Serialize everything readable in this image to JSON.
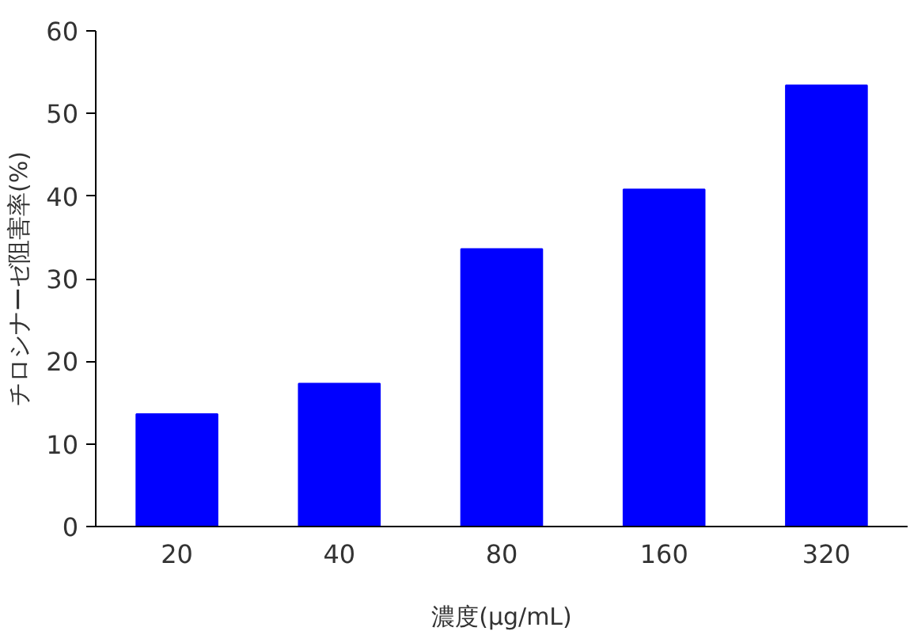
{
  "chart_data": {
    "type": "bar",
    "xlabel": "濃度(μg/mL)",
    "ylabel": "チロシナーゼ阻害率(%)",
    "categories": [
      "20",
      "40",
      "80",
      "160",
      "320"
    ],
    "values": [
      13.6,
      17.3,
      33.6,
      40.8,
      53.4
    ],
    "color": "#0000ff",
    "ylim": [
      0,
      60
    ],
    "yticks": [
      0,
      10,
      20,
      30,
      40,
      50,
      60
    ],
    "grid": false
  }
}
